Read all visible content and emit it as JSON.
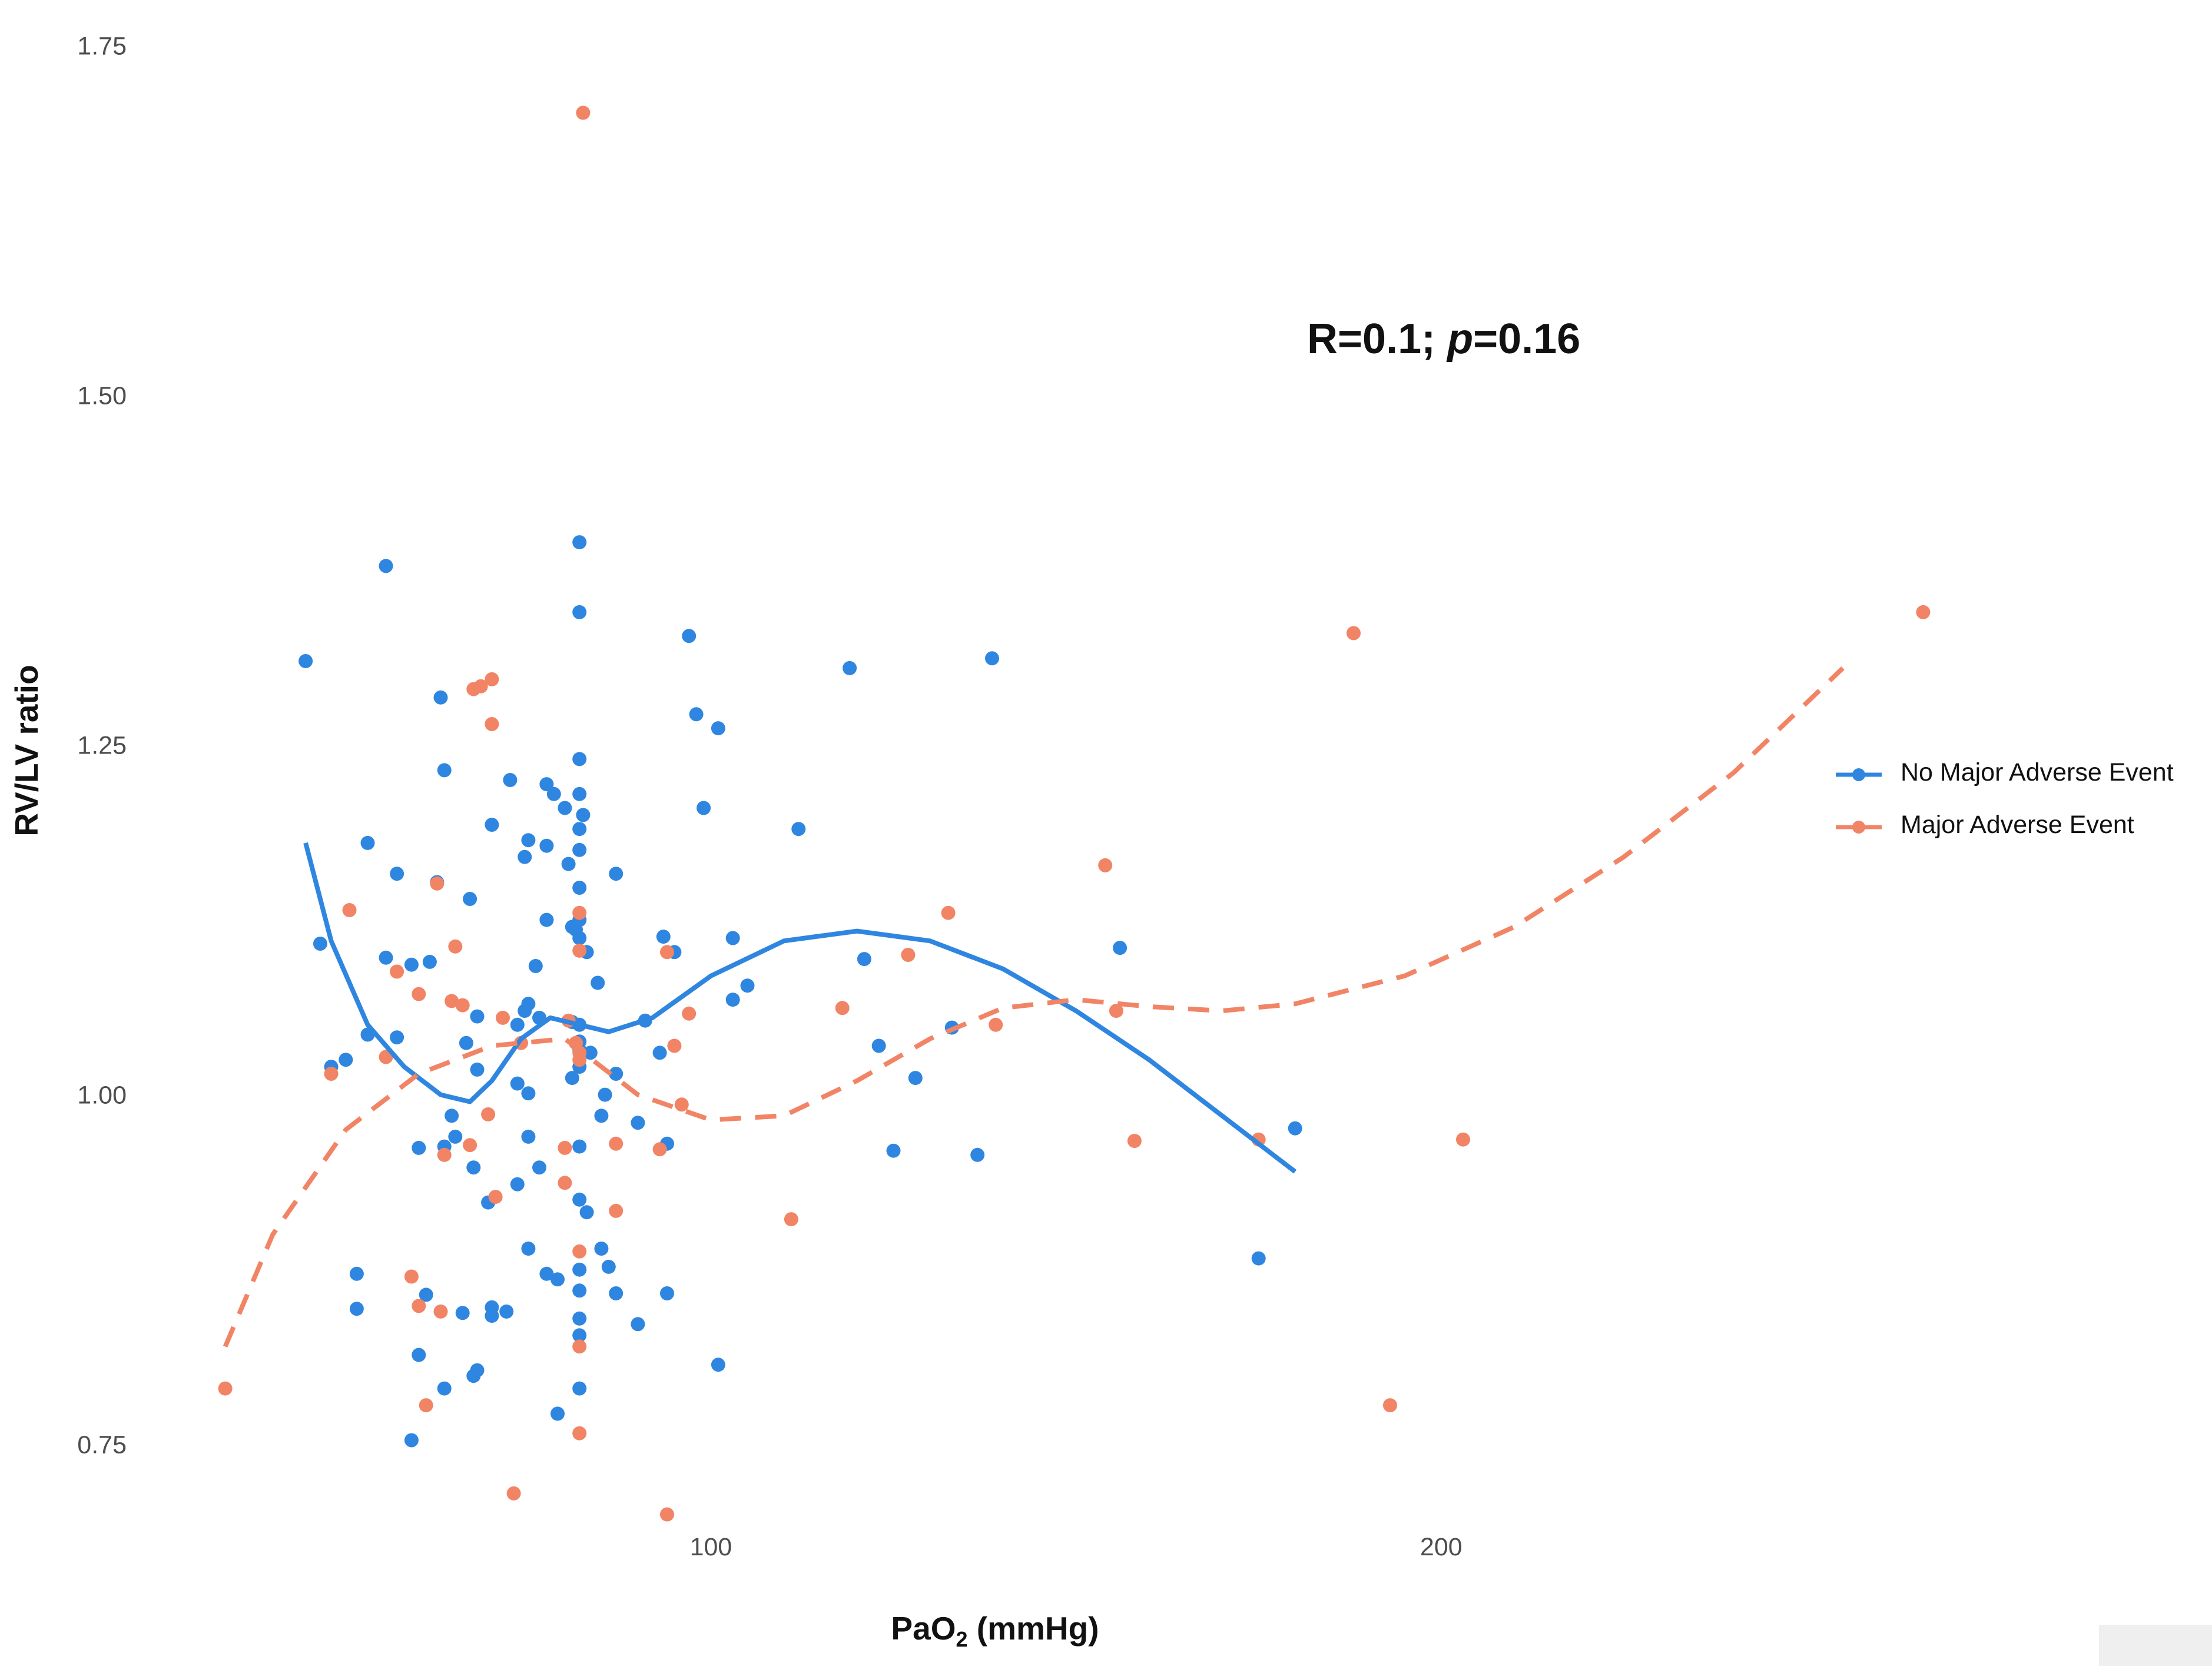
{
  "chart_data": {
    "type": "scatter",
    "title": "",
    "xlabel": "PaO",
    "xlabel_sub": "2",
    "xlabel_rest": " (mmHg)",
    "ylabel": "RV/LV ratio",
    "xlim": [
      27,
      255
    ],
    "ylim": [
      0.68,
      1.77
    ],
    "x_ticks": [
      100,
      200
    ],
    "x_tick_labels": [
      "100",
      "200"
    ],
    "y_ticks": [
      0.75,
      1.0,
      1.25,
      1.5,
      1.75
    ],
    "y_tick_labels": [
      "0.75",
      "1.00",
      "1.25",
      "1.50",
      "1.75"
    ],
    "grid": false,
    "legend_position": "right",
    "annotation": {
      "prefix": "R=0.1; ",
      "italic": "p",
      "suffix": "=0.16"
    },
    "series": [
      {
        "name": "No Major Adverse Event",
        "color": "#2f86e0",
        "line_style": "solid",
        "points": [
          [
            44.5,
            1.31
          ],
          [
            46.5,
            1.108
          ],
          [
            48,
            1.02
          ],
          [
            50,
            1.025
          ],
          [
            51.5,
            0.872
          ],
          [
            51.5,
            0.847
          ],
          [
            53,
            1.18
          ],
          [
            53,
            1.043
          ],
          [
            55.5,
            1.378
          ],
          [
            55.5,
            1.098
          ],
          [
            57,
            1.158
          ],
          [
            57,
            1.041
          ],
          [
            59,
            1.093
          ],
          [
            59,
            0.753
          ],
          [
            60,
            0.962
          ],
          [
            60,
            0.814
          ],
          [
            61,
            0.857
          ],
          [
            61.5,
            1.095
          ],
          [
            62.5,
            1.152
          ],
          [
            63,
            1.284
          ],
          [
            63.5,
            1.232
          ],
          [
            63.5,
            0.963
          ],
          [
            63.5,
            0.79
          ],
          [
            64.5,
            0.985
          ],
          [
            65,
            0.97
          ],
          [
            66,
            0.844
          ],
          [
            66.5,
            1.037
          ],
          [
            67,
            1.14
          ],
          [
            67.5,
            0.948
          ],
          [
            67.5,
            0.799
          ],
          [
            68,
            1.056
          ],
          [
            68,
            1.018
          ],
          [
            68,
            0.803
          ],
          [
            69.5,
            0.923
          ],
          [
            70,
            1.193
          ],
          [
            70,
            0.842
          ],
          [
            70,
            0.848
          ],
          [
            72,
            0.845
          ],
          [
            72.5,
            1.225
          ],
          [
            73.5,
            1.05
          ],
          [
            73.5,
            1.008
          ],
          [
            73.5,
            0.936
          ],
          [
            74.5,
            1.17
          ],
          [
            74.5,
            1.06
          ],
          [
            75,
            1.182
          ],
          [
            75,
            1.065
          ],
          [
            75,
            1.001
          ],
          [
            75,
            0.97
          ],
          [
            75,
            0.89
          ],
          [
            76,
            1.092
          ],
          [
            76.5,
            1.055
          ],
          [
            76.5,
            0.948
          ],
          [
            77.5,
            1.222
          ],
          [
            77.5,
            1.178
          ],
          [
            77.5,
            1.125
          ],
          [
            77.5,
            0.872
          ],
          [
            78.5,
            1.215
          ],
          [
            79,
            0.868
          ],
          [
            79,
            0.772
          ],
          [
            80,
            1.205
          ],
          [
            80.5,
            1.165
          ],
          [
            81,
            1.12
          ],
          [
            81,
            1.052
          ],
          [
            81,
            1.012
          ],
          [
            81.5,
            1.118
          ],
          [
            82,
            1.395
          ],
          [
            82,
            1.345
          ],
          [
            82,
            1.24
          ],
          [
            82,
            1.215
          ],
          [
            82,
            1.19
          ],
          [
            82,
            1.175
          ],
          [
            82,
            1.148
          ],
          [
            82,
            1.125
          ],
          [
            82,
            1.112
          ],
          [
            82,
            1.05
          ],
          [
            82,
            1.038
          ],
          [
            82,
            1.032
          ],
          [
            82,
            1.02
          ],
          [
            82,
            0.963
          ],
          [
            82,
            0.925
          ],
          [
            82,
            0.875
          ],
          [
            82,
            0.86
          ],
          [
            82,
            0.84
          ],
          [
            82,
            0.828
          ],
          [
            82,
            0.79
          ],
          [
            82.5,
            1.2
          ],
          [
            83,
            1.102
          ],
          [
            83,
            0.916
          ],
          [
            83.5,
            1.03
          ],
          [
            84.5,
            1.08
          ],
          [
            85,
            0.985
          ],
          [
            85,
            0.89
          ],
          [
            85.5,
            1.0
          ],
          [
            86,
            0.877
          ],
          [
            87,
            1.158
          ],
          [
            87,
            1.015
          ],
          [
            87,
            0.858
          ],
          [
            90,
            0.98
          ],
          [
            90,
            0.836
          ],
          [
            91,
            1.053
          ],
          [
            93,
            1.03
          ],
          [
            93.5,
            1.113
          ],
          [
            94,
            0.965
          ],
          [
            94,
            0.858
          ],
          [
            95,
            1.102
          ],
          [
            97,
            1.328
          ],
          [
            98,
            1.272
          ],
          [
            99,
            1.205
          ],
          [
            101,
            1.262
          ],
          [
            101,
            0.807
          ],
          [
            103,
            1.112
          ],
          [
            103,
            1.068
          ],
          [
            105,
            1.078
          ],
          [
            112,
            1.19
          ],
          [
            119,
            1.305
          ],
          [
            121,
            1.097
          ],
          [
            123,
            1.035
          ],
          [
            125,
            0.96
          ],
          [
            128,
            1.012
          ],
          [
            133,
            1.048
          ],
          [
            136.5,
            0.957
          ],
          [
            138.5,
            1.312
          ],
          [
            156,
            1.105
          ],
          [
            175,
            0.883
          ],
          [
            180,
            0.976
          ]
        ],
        "trend": [
          [
            44.5,
            1.18
          ],
          [
            48,
            1.11
          ],
          [
            53,
            1.05
          ],
          [
            58,
            1.02
          ],
          [
            63,
            1.0
          ],
          [
            67,
            0.995
          ],
          [
            70,
            1.01
          ],
          [
            74,
            1.04
          ],
          [
            78,
            1.055
          ],
          [
            82,
            1.05
          ],
          [
            86,
            1.045
          ],
          [
            92,
            1.055
          ],
          [
            100,
            1.085
          ],
          [
            110,
            1.11
          ],
          [
            120,
            1.117
          ],
          [
            130,
            1.11
          ],
          [
            140,
            1.09
          ],
          [
            150,
            1.06
          ],
          [
            160,
            1.025
          ],
          [
            170,
            0.985
          ],
          [
            180,
            0.945
          ]
        ]
      },
      {
        "name": "Major Adverse Event",
        "color": "#f28466",
        "line_style": "dashed",
        "points": [
          [
            33.5,
            0.79
          ],
          [
            48,
            1.015
          ],
          [
            50.5,
            1.132
          ],
          [
            55.5,
            1.027
          ],
          [
            57,
            1.088
          ],
          [
            59,
            0.87
          ],
          [
            60,
            1.072
          ],
          [
            60,
            0.849
          ],
          [
            61,
            0.778
          ],
          [
            62.5,
            1.151
          ],
          [
            63,
            0.845
          ],
          [
            63.5,
            0.957
          ],
          [
            64.5,
            1.067
          ],
          [
            65,
            1.106
          ],
          [
            66,
            1.064
          ],
          [
            67,
            0.964
          ],
          [
            67.5,
            1.29
          ],
          [
            68.5,
            1.292
          ],
          [
            69.5,
            0.986
          ],
          [
            70,
            1.297
          ],
          [
            70,
            1.265
          ],
          [
            70.5,
            0.927
          ],
          [
            71.5,
            1.055
          ],
          [
            73,
            0.715
          ],
          [
            74,
            1.037
          ],
          [
            80,
            0.962
          ],
          [
            80,
            0.937
          ],
          [
            80.5,
            1.053
          ],
          [
            81.5,
            1.037
          ],
          [
            82,
            1.13
          ],
          [
            82,
            1.103
          ],
          [
            82,
            1.03
          ],
          [
            82,
            1.025
          ],
          [
            82,
            0.888
          ],
          [
            82,
            0.82
          ],
          [
            82,
            0.758
          ],
          [
            82.5,
            1.702
          ],
          [
            87,
            0.965
          ],
          [
            87,
            0.917
          ],
          [
            93,
            0.961
          ],
          [
            94,
            1.102
          ],
          [
            94,
            0.7
          ],
          [
            95,
            1.035
          ],
          [
            96,
            0.993
          ],
          [
            97,
            1.058
          ],
          [
            111,
            0.911
          ],
          [
            118,
            1.062
          ],
          [
            127,
            1.1
          ],
          [
            132.5,
            1.13
          ],
          [
            139,
            1.05
          ],
          [
            154,
            1.164
          ],
          [
            155.5,
            1.06
          ],
          [
            158,
            0.967
          ],
          [
            175,
            0.968
          ],
          [
            188,
            1.33
          ],
          [
            193,
            0.778
          ],
          [
            203,
            0.968
          ],
          [
            266,
            1.345
          ]
        ],
        "trend": [
          [
            33.5,
            0.82
          ],
          [
            40,
            0.9
          ],
          [
            50,
            0.975
          ],
          [
            60,
            1.015
          ],
          [
            70,
            1.035
          ],
          [
            80,
            1.04
          ],
          [
            90,
            1.0
          ],
          [
            100,
            0.982
          ],
          [
            110,
            0.985
          ],
          [
            120,
            1.01
          ],
          [
            130,
            1.04
          ],
          [
            140,
            1.062
          ],
          [
            150,
            1.068
          ],
          [
            160,
            1.063
          ],
          [
            170,
            1.06
          ],
          [
            180,
            1.065
          ],
          [
            195,
            1.085
          ],
          [
            210,
            1.12
          ],
          [
            225,
            1.17
          ],
          [
            240,
            1.23
          ],
          [
            252,
            1.29
          ],
          [
            255,
            1.305
          ]
        ]
      }
    ]
  }
}
